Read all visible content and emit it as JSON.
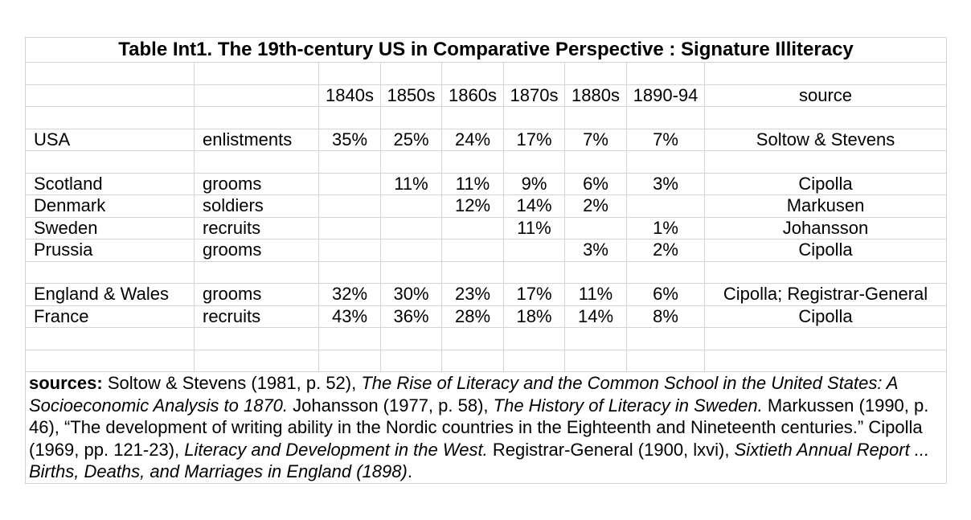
{
  "title": "Table Int1. The 19th-century US in Comparative Perspective : Signature Illiteracy",
  "header": {
    "periods": [
      "1840s",
      "1850s",
      "1860s",
      "1870s",
      "1880s",
      "1890-94"
    ],
    "source_label": "source"
  },
  "rows": [
    {
      "country": "USA",
      "group": "enlistments",
      "values": [
        "35%",
        "25%",
        "24%",
        "17%",
        "7%",
        "7%"
      ],
      "source": "Soltow & Stevens"
    },
    {
      "country": "Scotland",
      "group": "grooms",
      "values": [
        "",
        "11%",
        "11%",
        "9%",
        "6%",
        "3%"
      ],
      "source": "Cipolla"
    },
    {
      "country": "Denmark",
      "group": "soldiers",
      "values": [
        "",
        "",
        "12%",
        "14%",
        "2%",
        ""
      ],
      "source": "Markusen"
    },
    {
      "country": "Sweden",
      "group": "recruits",
      "values": [
        "",
        "",
        "",
        "11%",
        "",
        "1%"
      ],
      "source": "Johansson"
    },
    {
      "country": "Prussia",
      "group": "grooms",
      "values": [
        "",
        "",
        "",
        "",
        "3%",
        "2%"
      ],
      "source": "Cipolla"
    },
    {
      "country": "England & Wales",
      "group": "grooms",
      "values": [
        "32%",
        "30%",
        "23%",
        "17%",
        "11%",
        "6%"
      ],
      "source": "Cipolla; Registrar-General"
    },
    {
      "country": "France",
      "group": "recruits",
      "values": [
        "43%",
        "36%",
        "28%",
        "18%",
        "14%",
        "8%"
      ],
      "source": "Cipolla"
    }
  ],
  "notes": {
    "label": "sources:",
    "s1": " Soltow & Stevens (1981, p. 52), ",
    "s1_title": "The Rise of Literacy and the Common School in the United States: A Socioeconomic Analysis to 1870.",
    "s2": " Johansson (1977, p. 58), ",
    "s2_title": "The History of Literacy in Sweden.",
    "s3": " Markussen (1990, p. 46), “The development of writing ability in the Nordic countries in the Eighteenth and Nineteenth centuries.” Cipolla (1969, pp. 121-23), ",
    "s3_title": "Literacy and Development in the West.",
    "s4": " Registrar-General (1900, lxvi), ",
    "s4_title": "Sixtieth Annual Report ... Births, Deaths, and Marriages in England (1898)",
    "s4_end": "."
  }
}
